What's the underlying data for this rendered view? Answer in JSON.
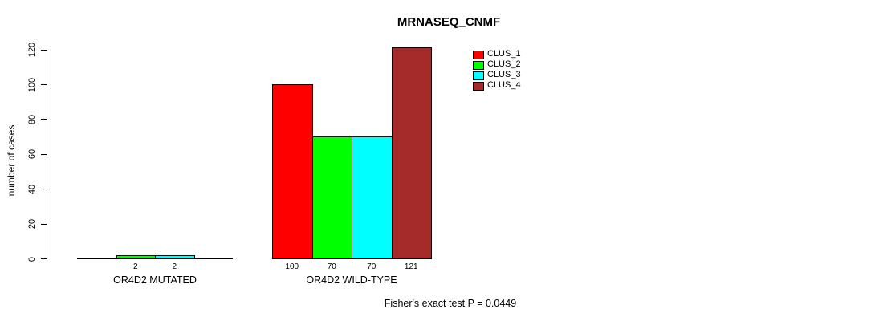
{
  "title": "MRNASEQ_CNMF",
  "footer": "Fisher's exact test P = 0.0449",
  "chart_data": {
    "type": "bar",
    "title": "MRNASEQ_CNMF",
    "xlabel": "",
    "ylabel": "number of cases",
    "ylim": [
      0,
      120
    ],
    "yticks": [
      0,
      20,
      40,
      60,
      80,
      100,
      120
    ],
    "grid": false,
    "legend_position": "top-right",
    "bar_value_labels_shown": true,
    "categories": [
      "OR4D2 MUTATED",
      "OR4D2 WILD-TYPE"
    ],
    "series": [
      {
        "name": "CLUS_1",
        "color": "#ff0000",
        "values": [
          0,
          100
        ]
      },
      {
        "name": "CLUS_2",
        "color": "#00ff00",
        "values": [
          2,
          70
        ]
      },
      {
        "name": "CLUS_3",
        "color": "#00ffff",
        "values": [
          2,
          70
        ]
      },
      {
        "name": "CLUS_4",
        "color": "#a52a2a",
        "values": [
          0,
          121
        ]
      }
    ],
    "groups": [
      {
        "label": "OR4D2 MUTATED",
        "values": [
          0,
          2,
          2,
          0
        ],
        "value_labels": [
          "",
          "2",
          "2",
          ""
        ]
      },
      {
        "label": "OR4D2 WILD-TYPE",
        "values": [
          100,
          70,
          70,
          121
        ],
        "value_labels": [
          "100",
          "70",
          "70",
          "121"
        ]
      }
    ],
    "annotation": "Fisher's exact test P = 0.0449"
  }
}
